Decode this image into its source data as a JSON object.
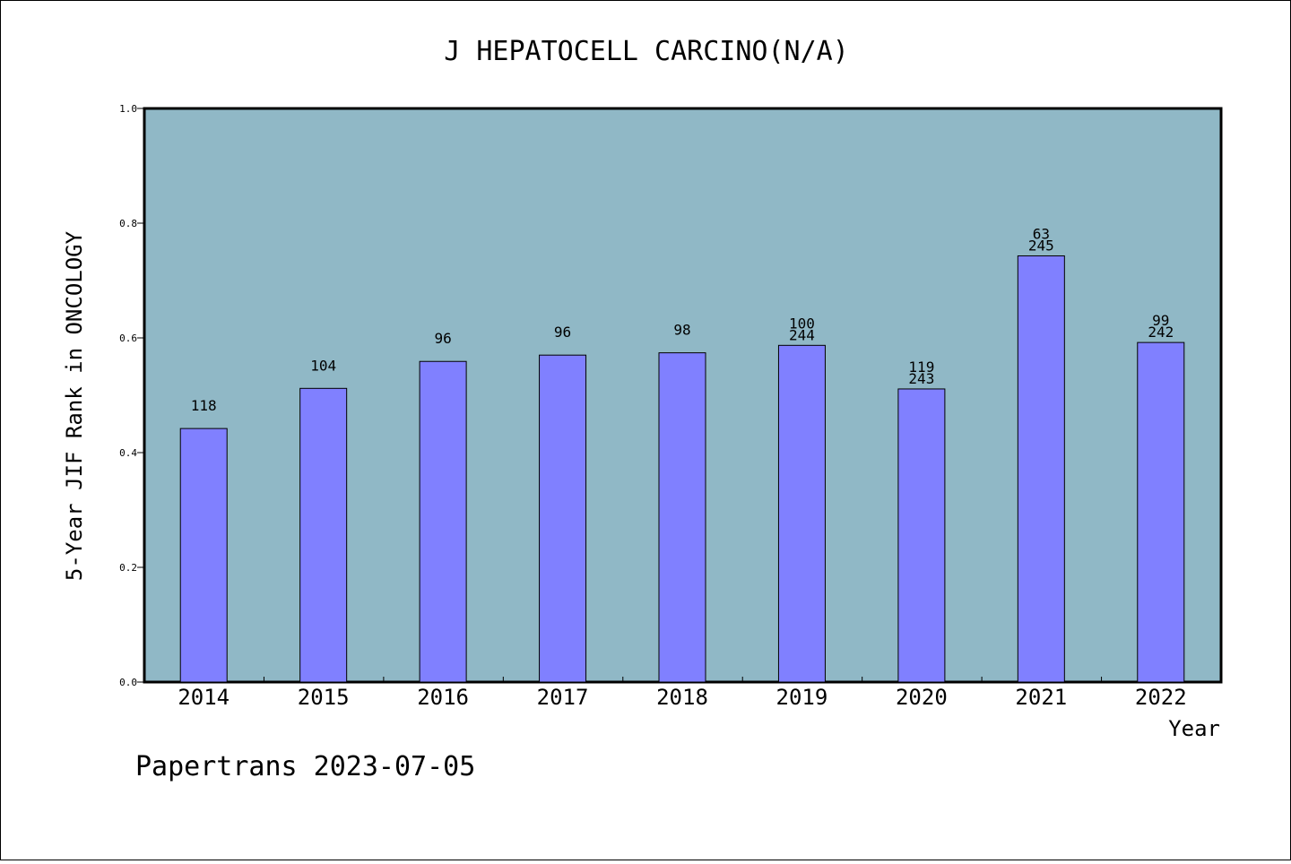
{
  "chart_data": {
    "type": "bar",
    "title": "J HEPATOCELL CARCINO(N/A)",
    "xlabel": "Year",
    "ylabel": "5-Year JIF Rank in ONCOLOGY",
    "ylim": [
      0.0,
      1.0
    ],
    "yticks": [
      "0.0",
      "0.2",
      "0.4",
      "0.6",
      "0.8",
      "1.0"
    ],
    "categories": [
      "2014",
      "2015",
      "2016",
      "2017",
      "2018",
      "2019",
      "2020",
      "2021",
      "2022"
    ],
    "values": [
      0.442,
      0.512,
      0.559,
      0.57,
      0.574,
      0.587,
      0.511,
      0.743,
      0.592
    ],
    "bar_labels": [
      [
        "118"
      ],
      [
        "104"
      ],
      [
        "96"
      ],
      [
        "96"
      ],
      [
        "98"
      ],
      [
        "100",
        "244"
      ],
      [
        "119",
        "243"
      ],
      [
        "63",
        "245"
      ],
      [
        "99",
        "242"
      ]
    ],
    "grid": false,
    "legend": "none",
    "colors": {
      "plot_background": "#90b8c6",
      "bar_fill": "#8080ff",
      "bar_stroke": "#000000"
    }
  },
  "footer": "Papertrans 2023-07-05"
}
